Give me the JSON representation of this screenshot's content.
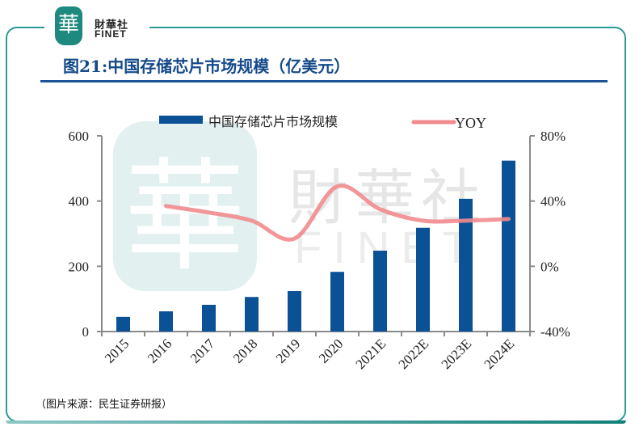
{
  "logo": {
    "cn": "財華社",
    "en": "FINET",
    "glyph": "華"
  },
  "watermark": {
    "glyph": "華",
    "cn": "財華社",
    "en": "FINET"
  },
  "title": "图21:中国存储芯片市场规模（亿美元）",
  "source": "（图片来源：民生证券研报）",
  "colors": {
    "bar": "#0b5196",
    "line": "#f28b8e",
    "frame": "#2a9a96",
    "title": "#144a8a"
  },
  "chart_data": {
    "type": "bar",
    "title": "图21:中国存储芯片市场规模（亿美元）",
    "categories": [
      "2015",
      "2016",
      "2017",
      "2018",
      "2019",
      "2020",
      "2021E",
      "2022E",
      "2023E",
      "2024E"
    ],
    "series": [
      {
        "name": "中国存储芯片市场规模",
        "type": "bar",
        "axis": "left",
        "values": [
          45,
          62,
          82,
          106,
          124,
          183,
          248,
          318,
          407,
          524
        ]
      },
      {
        "name": "YOY",
        "type": "line",
        "axis": "right",
        "values": [
          null,
          0.37,
          0.33,
          0.28,
          0.17,
          0.49,
          0.35,
          0.28,
          0.28,
          0.29
        ]
      }
    ],
    "left_axis": {
      "ylim": [
        0,
        600
      ],
      "ticks": [
        0,
        200,
        400,
        600
      ],
      "tick_labels": [
        "0",
        "200",
        "400",
        "600"
      ]
    },
    "right_axis": {
      "ylim": [
        -0.4,
        0.8
      ],
      "ticks": [
        -0.4,
        0,
        0.4,
        0.8
      ],
      "tick_labels": [
        "-40%",
        "0%",
        "40%",
        "80%"
      ]
    },
    "legend": {
      "position": "top",
      "entries": [
        "中国存储芯片市场规模",
        "YOY"
      ]
    },
    "grid": false,
    "xlabel": "",
    "ylabel": ""
  }
}
